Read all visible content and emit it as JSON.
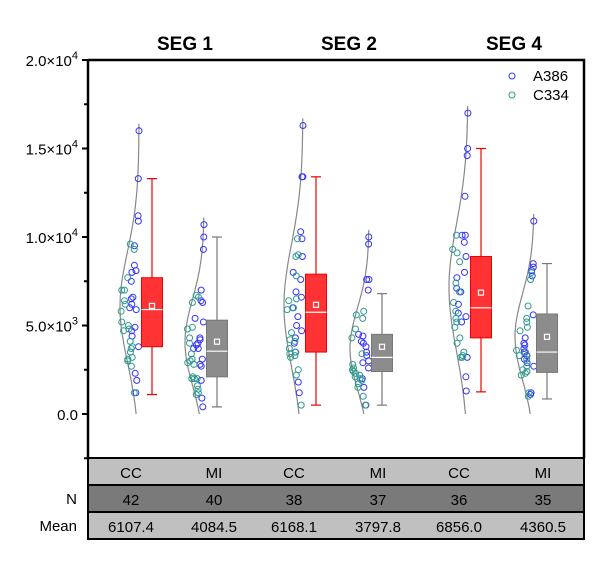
{
  "chart_data": {
    "type": "box-violin-scatter",
    "ylim": [
      0,
      20000
    ],
    "yticks": [
      {
        "value": 0,
        "label": "0.0",
        "exp": ""
      },
      {
        "value": 5000,
        "label": "5.0×10",
        "exp": "3"
      },
      {
        "value": 10000,
        "label": "1.0×10",
        "exp": "4"
      },
      {
        "value": 15000,
        "label": "1.5×10",
        "exp": "4"
      },
      {
        "value": 20000,
        "label": "2.0×10",
        "exp": "4"
      }
    ],
    "panels": [
      "SEG 1",
      "SEG 2",
      "SEG 4"
    ],
    "legend": {
      "position": "top-right",
      "entries": [
        {
          "name": "A386",
          "color": "#3333ff"
        },
        {
          "name": "C334",
          "color": "#2e9a8e"
        }
      ]
    },
    "colors": {
      "CC": "#ff3333",
      "CC_edge": "#ee0000",
      "MI": "#8c8c8c",
      "MI_edge": "#777777"
    },
    "groups": [
      {
        "panel": "SEG 1",
        "category": "CC",
        "n": "42",
        "mean_label": "6107.4",
        "mean": 6107.4,
        "whisker_low": 1100,
        "q1": 3800,
        "median": 5900,
        "q3": 7700,
        "whisker_high": 13300,
        "A386": [
          16000,
          13300,
          11200,
          10900,
          9500,
          8400,
          8100,
          8000,
          7500,
          6600,
          6500,
          6200,
          6000,
          5900,
          4900,
          4700,
          4400,
          3800,
          2300,
          1900,
          1200
        ],
        "C334": [
          9600,
          9300,
          7700,
          7000,
          7000,
          6400,
          6200,
          5800,
          5200,
          5000,
          4800,
          4700,
          4100,
          3800,
          3700,
          3500,
          3200,
          3000,
          2700,
          1200,
          3100
        ]
      },
      {
        "panel": "SEG 1",
        "category": "MI",
        "n": "40",
        "mean_label": "4084.5",
        "mean": 4084.5,
        "whisker_low": 400,
        "q1": 2100,
        "median": 3550,
        "q3": 5300,
        "whisker_high": 10000,
        "A386": [
          10700,
          10000,
          9300,
          7000,
          6400,
          6300,
          5400,
          5200,
          4300,
          4200,
          3900,
          3700,
          3700,
          3100,
          2800,
          2700,
          1900,
          900,
          400,
          4000
        ],
        "C334": [
          6700,
          6600,
          6300,
          4900,
          4800,
          4300,
          4000,
          3400,
          3100,
          3000,
          2900,
          2800,
          2100,
          2000,
          2000,
          1600,
          1400,
          1200,
          1100,
          2000
        ]
      },
      {
        "panel": "SEG 2",
        "category": "CC",
        "n": "38",
        "mean_label": "6168.1",
        "mean": 6168.1,
        "whisker_low": 500,
        "q1": 3500,
        "median": 5750,
        "q3": 7900,
        "whisker_high": 13400,
        "A386": [
          16300,
          13400,
          13400,
          10300,
          9900,
          8900,
          8000,
          7600,
          6900,
          6600,
          5500,
          5000,
          4700,
          4000,
          3500,
          1800,
          1200,
          6000,
          4300
        ],
        "C334": [
          9900,
          9000,
          8900,
          7800,
          6500,
          6400,
          6000,
          5900,
          4600,
          4200,
          4100,
          3700,
          3500,
          3300,
          3200,
          2500,
          2200,
          500,
          3400
        ]
      },
      {
        "panel": "SEG 2",
        "category": "MI",
        "n": "37",
        "mean_label": "3797.8",
        "mean": 3797.8,
        "whisker_low": 500,
        "q1": 2400,
        "median": 3200,
        "q3": 4500,
        "whisker_high": 6800,
        "A386": [
          10000,
          9600,
          7600,
          7600,
          7000,
          4500,
          4400,
          4100,
          3800,
          3500,
          3300,
          2900,
          2600,
          2000,
          1500,
          500,
          4000,
          3000
        ],
        "C334": [
          5800,
          5600,
          5400,
          4800,
          4300,
          3400,
          2800,
          2600,
          2500,
          2400,
          2300,
          2000,
          1900,
          1700,
          1500,
          1000,
          500,
          2200,
          2100
        ]
      },
      {
        "panel": "SEG 4",
        "category": "CC",
        "n": "36",
        "mean_label": "6856.0",
        "mean": 6856.0,
        "whisker_low": 1250,
        "q1": 4300,
        "median": 6000,
        "q3": 8900,
        "whisker_high": 15000,
        "A386": [
          17000,
          15000,
          14600,
          12300,
          10100,
          10100,
          9700,
          8900,
          8000,
          7700,
          7100,
          6900,
          6200,
          5700,
          5500,
          5200,
          3200,
          2100,
          1300
        ],
        "C334": [
          10100,
          9300,
          9100,
          8600,
          7400,
          6900,
          6300,
          5800,
          5400,
          5200,
          4900,
          4300,
          4000,
          3500,
          3200,
          3200,
          3300
        ]
      },
      {
        "panel": "SEG 4",
        "category": "MI",
        "n": "35",
        "mean_label": "4360.5",
        "mean": 4360.5,
        "whisker_low": 850,
        "q1": 2350,
        "median": 3500,
        "q3": 5650,
        "whisker_high": 8500,
        "A386": [
          10900,
          8500,
          8300,
          8100,
          7800,
          5600,
          4300,
          3900,
          3700,
          3500,
          3300,
          3100,
          2700,
          1100,
          1200,
          2900,
          4000
        ],
        "C334": [
          8000,
          7600,
          6100,
          5400,
          5200,
          4900,
          4700,
          3600,
          3500,
          3100,
          2700,
          2500,
          2400,
          2300,
          2200,
          1200,
          1000,
          3300
        ]
      }
    ],
    "table": {
      "row_labels": {
        "n": "N",
        "mean": "Mean"
      }
    }
  }
}
